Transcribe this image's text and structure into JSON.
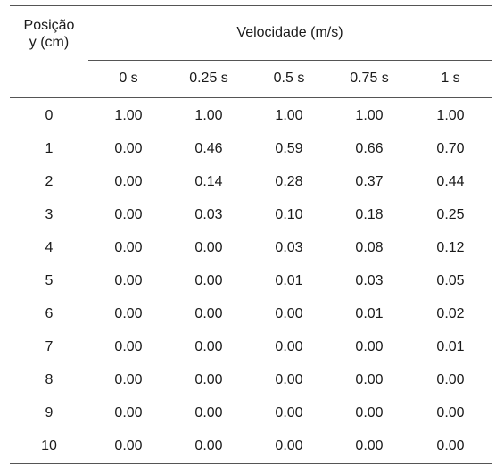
{
  "table": {
    "position_header": {
      "line1": "Posição",
      "line2": "y (cm)"
    },
    "group_header": "Velocidade (m/s)",
    "time_columns": [
      "0 s",
      "0.25 s",
      "0.5 s",
      "0.75 s",
      "1 s"
    ],
    "rows": [
      {
        "pos": "0",
        "vals": [
          "1.00",
          "1.00",
          "1.00",
          "1.00",
          "1.00"
        ]
      },
      {
        "pos": "1",
        "vals": [
          "0.00",
          "0.46",
          "0.59",
          "0.66",
          "0.70"
        ]
      },
      {
        "pos": "2",
        "vals": [
          "0.00",
          "0.14",
          "0.28",
          "0.37",
          "0.44"
        ]
      },
      {
        "pos": "3",
        "vals": [
          "0.00",
          "0.03",
          "0.10",
          "0.18",
          "0.25"
        ]
      },
      {
        "pos": "4",
        "vals": [
          "0.00",
          "0.00",
          "0.03",
          "0.08",
          "0.12"
        ]
      },
      {
        "pos": "5",
        "vals": [
          "0.00",
          "0.00",
          "0.01",
          "0.03",
          "0.05"
        ]
      },
      {
        "pos": "6",
        "vals": [
          "0.00",
          "0.00",
          "0.00",
          "0.01",
          "0.02"
        ]
      },
      {
        "pos": "7",
        "vals": [
          "0.00",
          "0.00",
          "0.00",
          "0.00",
          "0.01"
        ]
      },
      {
        "pos": "8",
        "vals": [
          "0.00",
          "0.00",
          "0.00",
          "0.00",
          "0.00"
        ]
      },
      {
        "pos": "9",
        "vals": [
          "0.00",
          "0.00",
          "0.00",
          "0.00",
          "0.00"
        ]
      },
      {
        "pos": "10",
        "vals": [
          "0.00",
          "0.00",
          "0.00",
          "0.00",
          "0.00"
        ]
      }
    ]
  }
}
